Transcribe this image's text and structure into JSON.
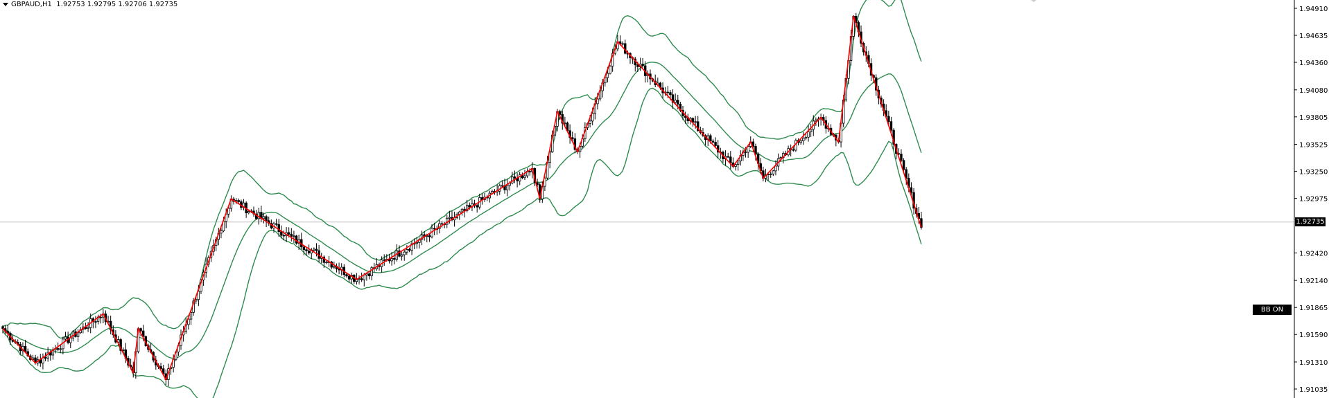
{
  "header": {
    "symbol": "GBPAUD,H1",
    "ohlc": "1.92753 1.92795 1.92706 1.92735"
  },
  "price_axis": {
    "ticks": [
      "1.94910",
      "1.94635",
      "1.94360",
      "1.94080",
      "1.93805",
      "1.93525",
      "1.93250",
      "1.92975",
      "1.92420",
      "1.92140",
      "1.91865",
      "1.91590",
      "1.91310",
      "1.91035"
    ],
    "current_price": "1.92735"
  },
  "bb_button": {
    "label": "BB ON"
  },
  "colors": {
    "bands": "#2e8b4e",
    "zigzag": "#ff0000",
    "candle": "#000000",
    "price_line": "#c0c0c0",
    "background": "#ffffff"
  },
  "chart_data": {
    "type": "candlestick",
    "timeframe": "H1",
    "ylim": [
      1.9098,
      1.95
    ],
    "indicators": [
      "Bollinger Bands",
      "ZigZag"
    ],
    "grid": false,
    "zigzag_points": [
      {
        "index": 0,
        "price": 1.9165
      },
      {
        "index": 13,
        "price": 1.913
      },
      {
        "index": 40,
        "price": 1.918
      },
      {
        "index": 52,
        "price": 1.912
      },
      {
        "index": 54,
        "price": 1.9165
      },
      {
        "index": 65,
        "price": 1.9113
      },
      {
        "index": 91,
        "price": 1.9297
      },
      {
        "index": 141,
        "price": 1.9215
      },
      {
        "index": 211,
        "price": 1.9328
      },
      {
        "index": 214,
        "price": 1.9297
      },
      {
        "index": 221,
        "price": 1.9386
      },
      {
        "index": 229,
        "price": 1.9345
      },
      {
        "index": 245,
        "price": 1.9457
      },
      {
        "index": 291,
        "price": 1.933
      },
      {
        "index": 298,
        "price": 1.9355
      },
      {
        "index": 303,
        "price": 1.9318
      },
      {
        "index": 326,
        "price": 1.938
      },
      {
        "index": 333,
        "price": 1.9355
      },
      {
        "index": 339,
        "price": 1.9483
      },
      {
        "index": 366,
        "price": 1.9268
      }
    ],
    "last_price": 1.92735
  }
}
